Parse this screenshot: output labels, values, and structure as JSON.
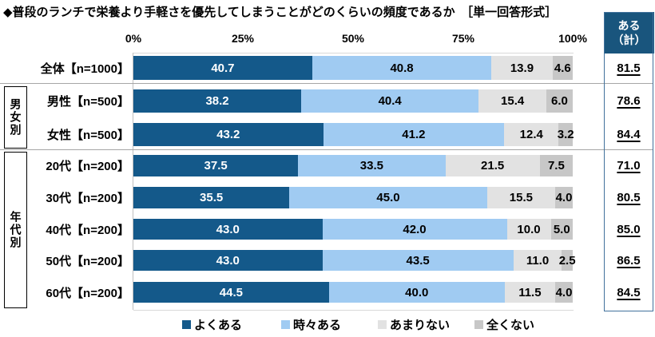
{
  "chart_data": {
    "type": "bar",
    "stacked": true,
    "orientation": "horizontal",
    "title": "◆普段のランチで栄養より手軽さを優先してしまうことがどのくらいの頻度であるか　［単一回答形式］",
    "categories": [
      "全体【n=1000】",
      "男性【n=500】",
      "女性【n=500】",
      "20代【n=200】",
      "30代【n=200】",
      "40代【n=200】",
      "50代【n=200】",
      "60代【n=200】"
    ],
    "groups": [
      {
        "label": "男女別",
        "row_indexes": [
          1,
          2
        ]
      },
      {
        "label": "年代別",
        "row_indexes": [
          3,
          4,
          5,
          6,
          7
        ]
      }
    ],
    "series": [
      {
        "name": "よくある",
        "color": "#14598A",
        "label_color": "#FFFFFF",
        "values": [
          40.7,
          38.2,
          43.2,
          37.5,
          35.5,
          43.0,
          43.0,
          44.5
        ]
      },
      {
        "name": "時々ある",
        "color": "#A0CBF2",
        "label_color": "#000000",
        "values": [
          40.8,
          40.4,
          41.2,
          33.5,
          45.0,
          42.0,
          43.5,
          40.0
        ]
      },
      {
        "name": "あまりない",
        "color": "#E2E2E2",
        "label_color": "#000000",
        "values": [
          13.9,
          15.4,
          12.4,
          21.5,
          15.5,
          10.0,
          11.0,
          11.5
        ]
      },
      {
        "name": "全くない",
        "color": "#C7C7C7",
        "label_color": "#000000",
        "values": [
          4.6,
          6.0,
          3.2,
          7.5,
          4.0,
          5.0,
          2.5,
          4.0
        ]
      }
    ],
    "totals": {
      "header": "ある（計）",
      "header_line1": "ある",
      "header_line2": "（計）",
      "values": [
        81.5,
        78.6,
        84.4,
        71.0,
        80.5,
        85.0,
        86.5,
        84.5
      ],
      "underlined": true
    },
    "xlim": [
      0,
      100
    ],
    "x_ticks": [
      "0%",
      "25%",
      "50%",
      "75%",
      "100%"
    ],
    "grid": false,
    "legend_position": "bottom",
    "value_format": "one_decimal"
  },
  "colors": {
    "totals_header_bg": "#19557D",
    "totals_frame_border": "#41719C",
    "group_separator": "#A6A6A6",
    "axis_line": "#BFBFBF"
  }
}
